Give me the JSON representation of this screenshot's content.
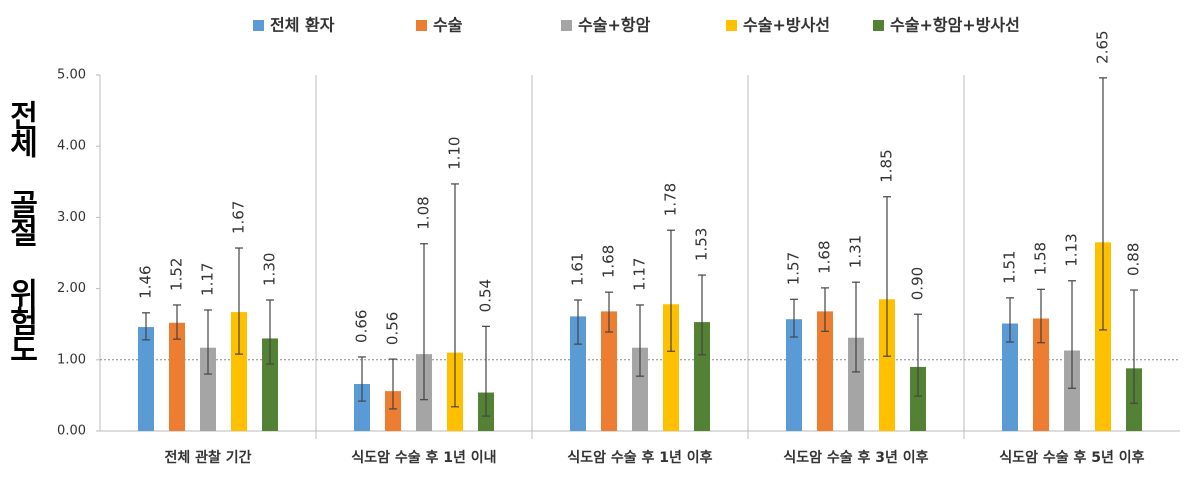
{
  "chart_data": {
    "type": "bar",
    "y_title": "전체 골절 위험도",
    "categories": [
      "전체 관찰 기간",
      "식도암 수술 후 1년 이내",
      "식도암 수술 후 1년 이후",
      "식도암 수술 후 3년 이후",
      "식도암 수술 후 5년 이후"
    ],
    "series": [
      {
        "name": "전체 환자",
        "color": "#5b9bd5",
        "values": [
          1.46,
          0.66,
          1.61,
          1.57,
          1.51
        ],
        "value_labels": [
          "1.46",
          "0.66",
          "1.61",
          "1.57",
          "1.51"
        ],
        "lower": [
          1.28,
          0.42,
          1.22,
          1.32,
          1.25
        ],
        "upper": [
          1.66,
          1.04,
          1.84,
          1.85,
          1.87
        ]
      },
      {
        "name": "수술",
        "color": "#ed7d31",
        "values": [
          1.52,
          0.56,
          1.68,
          1.68,
          1.58
        ],
        "value_labels": [
          "1.52",
          "0.56",
          "1.68",
          "1.68",
          "1.58"
        ],
        "lower": [
          1.29,
          0.31,
          1.39,
          1.4,
          1.24
        ],
        "upper": [
          1.77,
          1.01,
          1.95,
          2.01,
          1.99
        ]
      },
      {
        "name": "수술+항암",
        "color": "#a5a5a5",
        "values": [
          1.17,
          1.08,
          1.17,
          1.31,
          1.13
        ],
        "value_labels": [
          "1.17",
          "1.08",
          "1.17",
          "1.31",
          "1.13"
        ],
        "lower": [
          0.8,
          0.44,
          0.77,
          0.83,
          0.6
        ],
        "upper": [
          1.7,
          2.63,
          1.77,
          2.09,
          2.11
        ]
      },
      {
        "name": "수술+방사선",
        "color": "#ffc000",
        "values": [
          1.67,
          1.1,
          1.78,
          1.85,
          2.65
        ],
        "value_labels": [
          "1.67",
          "1.10",
          "1.78",
          "1.85",
          "2.65"
        ],
        "lower": [
          1.08,
          0.34,
          1.12,
          1.05,
          1.42
        ],
        "upper": [
          2.57,
          3.47,
          2.82,
          3.29,
          4.96
        ]
      },
      {
        "name": "수술+항암+방사선",
        "color": "#548235",
        "values": [
          1.3,
          0.54,
          1.53,
          0.9,
          0.88
        ],
        "value_labels": [
          "1.30",
          "0.54",
          "1.53",
          "0.90",
          "0.88"
        ],
        "lower": [
          0.94,
          0.21,
          1.07,
          0.49,
          0.39
        ],
        "upper": [
          1.84,
          1.47,
          2.19,
          1.64,
          1.98
        ]
      }
    ],
    "ylim": [
      0,
      5
    ],
    "yticks": [
      {
        "value": 0,
        "label": "0.00"
      },
      {
        "value": 1,
        "label": "1.00"
      },
      {
        "value": 2,
        "label": "2.00"
      },
      {
        "value": 3,
        "label": "3.00"
      },
      {
        "value": 4,
        "label": "4.00"
      },
      {
        "value": 5,
        "label": "5.00"
      }
    ],
    "reference_line": 1,
    "legend": "top"
  }
}
